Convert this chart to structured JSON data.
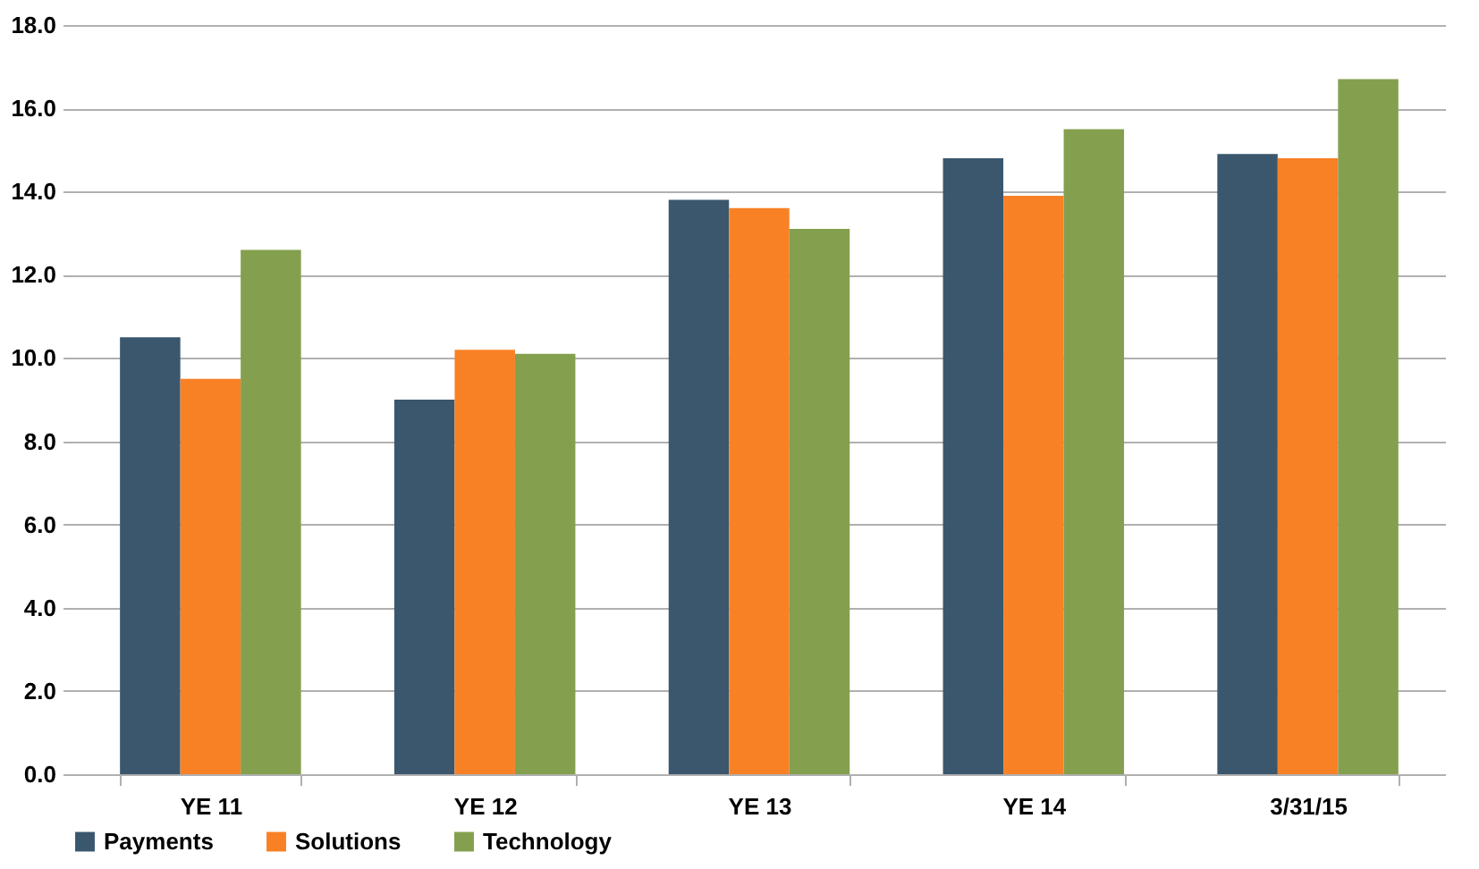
{
  "chart_data": {
    "type": "bar",
    "categories": [
      "YE 11",
      "YE 12",
      "YE 13",
      "YE 14",
      "3/31/15"
    ],
    "series": [
      {
        "name": "Payments",
        "color": "#3a576e",
        "values": [
          10.5,
          9.0,
          13.8,
          14.8,
          14.9
        ]
      },
      {
        "name": "Solutions",
        "color": "#f98125",
        "values": [
          9.5,
          10.2,
          13.6,
          13.9,
          14.8
        ]
      },
      {
        "name": "Technology",
        "color": "#84a04f",
        "values": [
          12.6,
          10.1,
          13.1,
          15.5,
          16.7
        ]
      }
    ],
    "ylim": [
      0,
      18
    ],
    "yticks": [
      {
        "value": 0,
        "label": "0.0"
      },
      {
        "value": 2,
        "label": "2.0"
      },
      {
        "value": 4,
        "label": "4.0"
      },
      {
        "value": 6,
        "label": "6.0"
      },
      {
        "value": 8,
        "label": "8.0"
      },
      {
        "value": 10,
        "label": "10.0"
      },
      {
        "value": 12,
        "label": "12.0"
      },
      {
        "value": 14,
        "label": "14.0"
      },
      {
        "value": 16,
        "label": "16.0"
      },
      {
        "value": 18,
        "label": "18.0"
      }
    ],
    "grid": "y",
    "legend": "bottom"
  }
}
